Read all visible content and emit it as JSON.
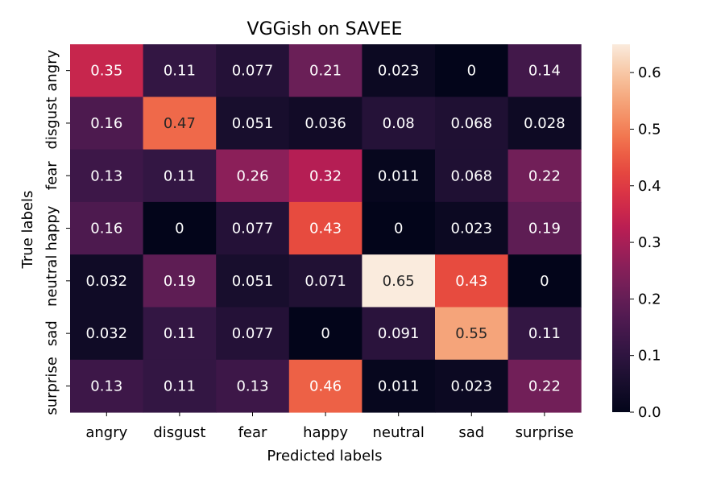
{
  "chart_data": {
    "type": "heatmap",
    "title": "VGGish on SAVEE",
    "xlabel": "Predicted labels",
    "ylabel": "True labels",
    "x_categories": [
      "angry",
      "disgust",
      "fear",
      "happy",
      "neutral",
      "sad",
      "surprise"
    ],
    "y_categories": [
      "angry",
      "disgust",
      "fear",
      "happy",
      "neutral",
      "sad",
      "surprise"
    ],
    "values": [
      [
        0.35,
        0.11,
        0.077,
        0.21,
        0.023,
        0,
        0.14
      ],
      [
        0.16,
        0.47,
        0.051,
        0.036,
        0.08,
        0.068,
        0.028
      ],
      [
        0.13,
        0.11,
        0.26,
        0.32,
        0.011,
        0.068,
        0.22
      ],
      [
        0.16,
        0,
        0.077,
        0.43,
        0,
        0.023,
        0.19
      ],
      [
        0.032,
        0.19,
        0.051,
        0.071,
        0.65,
        0.43,
        0
      ],
      [
        0.032,
        0.11,
        0.077,
        0,
        0.091,
        0.55,
        0.11
      ],
      [
        0.13,
        0.11,
        0.13,
        0.46,
        0.011,
        0.023,
        0.22
      ]
    ],
    "colorbar": {
      "range": [
        0.0,
        0.65
      ],
      "ticks": [
        0.0,
        0.1,
        0.2,
        0.3,
        0.4,
        0.5,
        0.6
      ],
      "tick_labels": [
        "0.0",
        "0.1",
        "0.2",
        "0.3",
        "0.4",
        "0.5",
        "0.6"
      ],
      "colormap": "rocket"
    }
  }
}
